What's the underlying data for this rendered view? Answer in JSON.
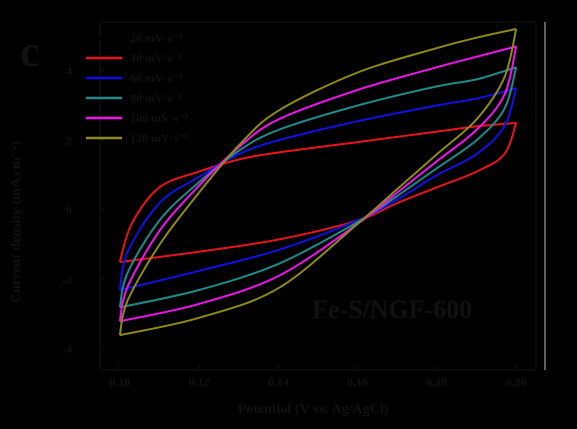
{
  "panel_label": "c",
  "sample_label": "Fe-S/NGF-600",
  "chart_data": {
    "type": "line",
    "xlabel": "Potential (V vs. Ag/AgCl)",
    "ylabel": "Current density (mA cm⁻²)",
    "xlim": [
      0.095,
      0.205
    ],
    "ylim": [
      -4.6,
      5.4
    ],
    "xticks": [
      0.1,
      0.12,
      0.14,
      0.16,
      0.18,
      0.2
    ],
    "xtick_labels": [
      "0.10",
      "0.12",
      "0.14",
      "0.16",
      "0.18",
      "0.20"
    ],
    "yticks": [
      -4,
      -2,
      0,
      2,
      4
    ],
    "ytick_labels": [
      "-4",
      "-2",
      "0",
      "2",
      "4"
    ],
    "legend_position": "top-left",
    "series": [
      {
        "name": "20 mV·s⁻¹",
        "color": "#000000",
        "upper": [
          [
            0.1,
            -0.2
          ],
          [
            0.11,
            0.55
          ],
          [
            0.12,
            0.9
          ],
          [
            0.14,
            1.05
          ],
          [
            0.16,
            1.15
          ],
          [
            0.18,
            1.25
          ],
          [
            0.2,
            1.35
          ]
        ],
        "lower": [
          [
            0.2,
            1.35
          ],
          [
            0.19,
            0.55
          ],
          [
            0.18,
            0.15
          ],
          [
            0.16,
            -0.25
          ],
          [
            0.14,
            -0.4
          ],
          [
            0.12,
            -0.55
          ],
          [
            0.1,
            -0.65
          ]
        ]
      },
      {
        "name": "40 mV·s⁻¹",
        "color": "#e8141c",
        "upper": [
          [
            0.1,
            -1.5
          ],
          [
            0.103,
            -0.4
          ],
          [
            0.11,
            0.65
          ],
          [
            0.12,
            1.1
          ],
          [
            0.13,
            1.45
          ],
          [
            0.14,
            1.65
          ],
          [
            0.16,
            1.95
          ],
          [
            0.18,
            2.25
          ],
          [
            0.19,
            2.4
          ],
          [
            0.2,
            2.5
          ]
        ],
        "lower": [
          [
            0.2,
            2.5
          ],
          [
            0.197,
            1.6
          ],
          [
            0.19,
            1.1
          ],
          [
            0.18,
            0.65
          ],
          [
            0.17,
            0.2
          ],
          [
            0.16,
            -0.3
          ],
          [
            0.14,
            -0.85
          ],
          [
            0.12,
            -1.2
          ],
          [
            0.1,
            -1.5
          ]
        ]
      },
      {
        "name": "60 mV·s⁻¹",
        "color": "#1010e6",
        "upper": [
          [
            0.1,
            -2.3
          ],
          [
            0.102,
            -1.2
          ],
          [
            0.11,
            0.2
          ],
          [
            0.12,
            0.95
          ],
          [
            0.13,
            1.6
          ],
          [
            0.14,
            2.0
          ],
          [
            0.16,
            2.55
          ],
          [
            0.18,
            3.0
          ],
          [
            0.19,
            3.2
          ],
          [
            0.2,
            3.5
          ]
        ],
        "lower": [
          [
            0.2,
            3.5
          ],
          [
            0.197,
            2.4
          ],
          [
            0.19,
            1.6
          ],
          [
            0.18,
            1.0
          ],
          [
            0.17,
            0.3
          ],
          [
            0.16,
            -0.3
          ],
          [
            0.14,
            -1.15
          ],
          [
            0.12,
            -1.75
          ],
          [
            0.1,
            -2.3
          ]
        ]
      },
      {
        "name": "80 mV·s⁻¹",
        "color": "#1f8a8a",
        "upper": [
          [
            0.1,
            -2.8
          ],
          [
            0.102,
            -1.8
          ],
          [
            0.11,
            -0.3
          ],
          [
            0.12,
            0.8
          ],
          [
            0.13,
            1.7
          ],
          [
            0.14,
            2.3
          ],
          [
            0.16,
            3.0
          ],
          [
            0.18,
            3.55
          ],
          [
            0.19,
            3.75
          ],
          [
            0.2,
            4.1
          ]
        ],
        "lower": [
          [
            0.2,
            4.1
          ],
          [
            0.197,
            2.9
          ],
          [
            0.19,
            2.0
          ],
          [
            0.18,
            1.2
          ],
          [
            0.17,
            0.4
          ],
          [
            0.16,
            -0.35
          ],
          [
            0.14,
            -1.55
          ],
          [
            0.12,
            -2.3
          ],
          [
            0.1,
            -2.8
          ]
        ]
      },
      {
        "name": "100 mV·s⁻¹",
        "color": "#f012f0",
        "upper": [
          [
            0.1,
            -3.2
          ],
          [
            0.102,
            -2.2
          ],
          [
            0.11,
            -0.6
          ],
          [
            0.12,
            0.7
          ],
          [
            0.13,
            1.8
          ],
          [
            0.14,
            2.6
          ],
          [
            0.16,
            3.45
          ],
          [
            0.18,
            4.1
          ],
          [
            0.19,
            4.4
          ],
          [
            0.2,
            4.7
          ]
        ],
        "lower": [
          [
            0.2,
            4.7
          ],
          [
            0.197,
            3.3
          ],
          [
            0.19,
            2.3
          ],
          [
            0.18,
            1.4
          ],
          [
            0.17,
            0.5
          ],
          [
            0.16,
            -0.4
          ],
          [
            0.14,
            -1.9
          ],
          [
            0.12,
            -2.7
          ],
          [
            0.1,
            -3.2
          ]
        ]
      },
      {
        "name": "120 mV·s⁻¹",
        "color": "#8e8a16",
        "upper": [
          [
            0.1,
            -3.6
          ],
          [
            0.102,
            -2.6
          ],
          [
            0.11,
            -1.0
          ],
          [
            0.12,
            0.5
          ],
          [
            0.13,
            1.85
          ],
          [
            0.14,
            2.85
          ],
          [
            0.16,
            3.95
          ],
          [
            0.18,
            4.65
          ],
          [
            0.19,
            4.95
          ],
          [
            0.2,
            5.2
          ]
        ],
        "lower": [
          [
            0.2,
            5.2
          ],
          [
            0.197,
            3.8
          ],
          [
            0.19,
            2.6
          ],
          [
            0.18,
            1.6
          ],
          [
            0.17,
            0.6
          ],
          [
            0.16,
            -0.4
          ],
          [
            0.14,
            -2.25
          ],
          [
            0.12,
            -3.1
          ],
          [
            0.1,
            -3.6
          ]
        ]
      }
    ]
  }
}
